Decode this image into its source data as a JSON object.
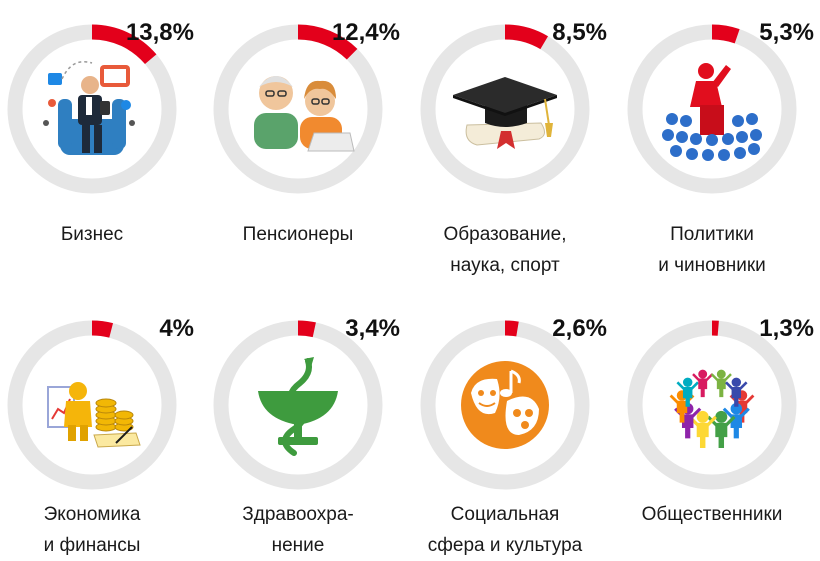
{
  "chart_data": {
    "type": "pie",
    "colors": {
      "ring": "#e6e6e6",
      "accent": "#e3001b"
    },
    "items": [
      {
        "value": 13.8,
        "value_label": "13,8%",
        "label_lines": [
          "Бизнес"
        ],
        "icon": "business-icon"
      },
      {
        "value": 12.4,
        "value_label": "12,4%",
        "label_lines": [
          "Пенсионеры"
        ],
        "icon": "pensioners-icon"
      },
      {
        "value": 8.5,
        "value_label": "8,5%",
        "label_lines": [
          "Образование,",
          "наука, спорт"
        ],
        "icon": "graduation-cap-icon"
      },
      {
        "value": 5.3,
        "value_label": "5,3%",
        "label_lines": [
          "Политики",
          "и чиновники"
        ],
        "icon": "politician-speech-icon"
      },
      {
        "value": 4,
        "value_label": "4%",
        "label_lines": [
          "Экономика",
          "и финансы"
        ],
        "icon": "finance-icon"
      },
      {
        "value": 3.4,
        "value_label": "3,4%",
        "label_lines": [
          "Здравоохра-",
          "нение"
        ],
        "icon": "medicine-bowl-snake-icon"
      },
      {
        "value": 2.6,
        "value_label": "2,6%",
        "label_lines": [
          "Социальная",
          "сфера и культура"
        ],
        "icon": "culture-masks-icon"
      },
      {
        "value": 1.3,
        "value_label": "1,3%",
        "label_lines": [
          "Общественники"
        ],
        "icon": "community-people-icon"
      }
    ]
  }
}
